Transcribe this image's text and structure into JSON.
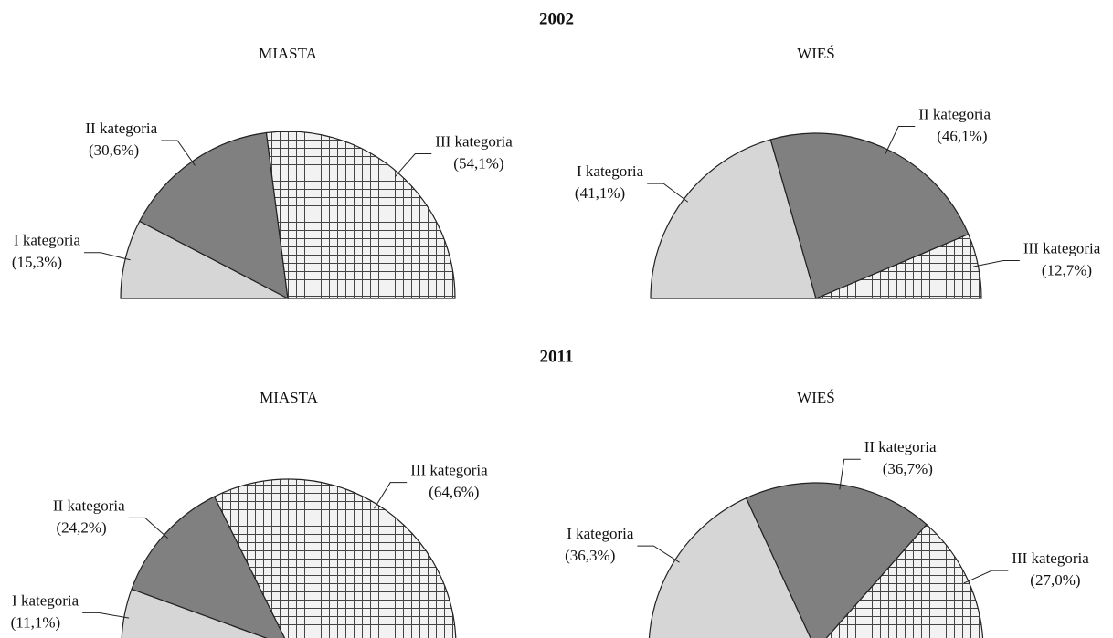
{
  "headings": [
    "2002",
    "2011"
  ],
  "chart_data": [
    {
      "type": "pie",
      "half": true,
      "title": "MIASTA",
      "categories": [
        "I kategoria",
        "II kategoria",
        "III kategoria"
      ],
      "values": [
        15.3,
        30.6,
        54.1
      ],
      "value_labels": [
        "(15,3%)",
        "(30,6%)",
        "(54,1%)"
      ],
      "colors": [
        "#d6d6d6",
        "#808081",
        "#ececec"
      ],
      "hatch": [
        false,
        false,
        true
      ]
    },
    {
      "type": "pie",
      "half": true,
      "title": "WIEŚ",
      "categories": [
        "I kategoria",
        "II kategoria",
        "III kategoria"
      ],
      "values": [
        41.1,
        46.1,
        12.7
      ],
      "value_labels": [
        "(41,1%)",
        "(46,1%)",
        "(12,7%)"
      ],
      "colors": [
        "#d6d6d6",
        "#808081",
        "#ececec"
      ],
      "hatch": [
        false,
        false,
        true
      ]
    },
    {
      "type": "pie",
      "half": true,
      "title": "MIASTA",
      "categories": [
        "I kategoria",
        "II kategoria",
        "III kategoria"
      ],
      "values": [
        11.1,
        24.2,
        64.6
      ],
      "value_labels": [
        "(11,1%)",
        "(24,2%)",
        "(64,6%)"
      ],
      "colors": [
        "#d6d6d6",
        "#808081",
        "#ececec"
      ],
      "hatch": [
        false,
        false,
        true
      ]
    },
    {
      "type": "pie",
      "half": true,
      "title": "WIEŚ",
      "categories": [
        "I kategoria",
        "II kategoria",
        "III kategoria"
      ],
      "values": [
        36.3,
        36.7,
        27.0
      ],
      "value_labels": [
        "(36,3%)",
        "(36,7%)",
        "(27,0%)"
      ],
      "colors": [
        "#d6d6d6",
        "#808081",
        "#ececec"
      ],
      "hatch": [
        false,
        false,
        true
      ]
    }
  ]
}
